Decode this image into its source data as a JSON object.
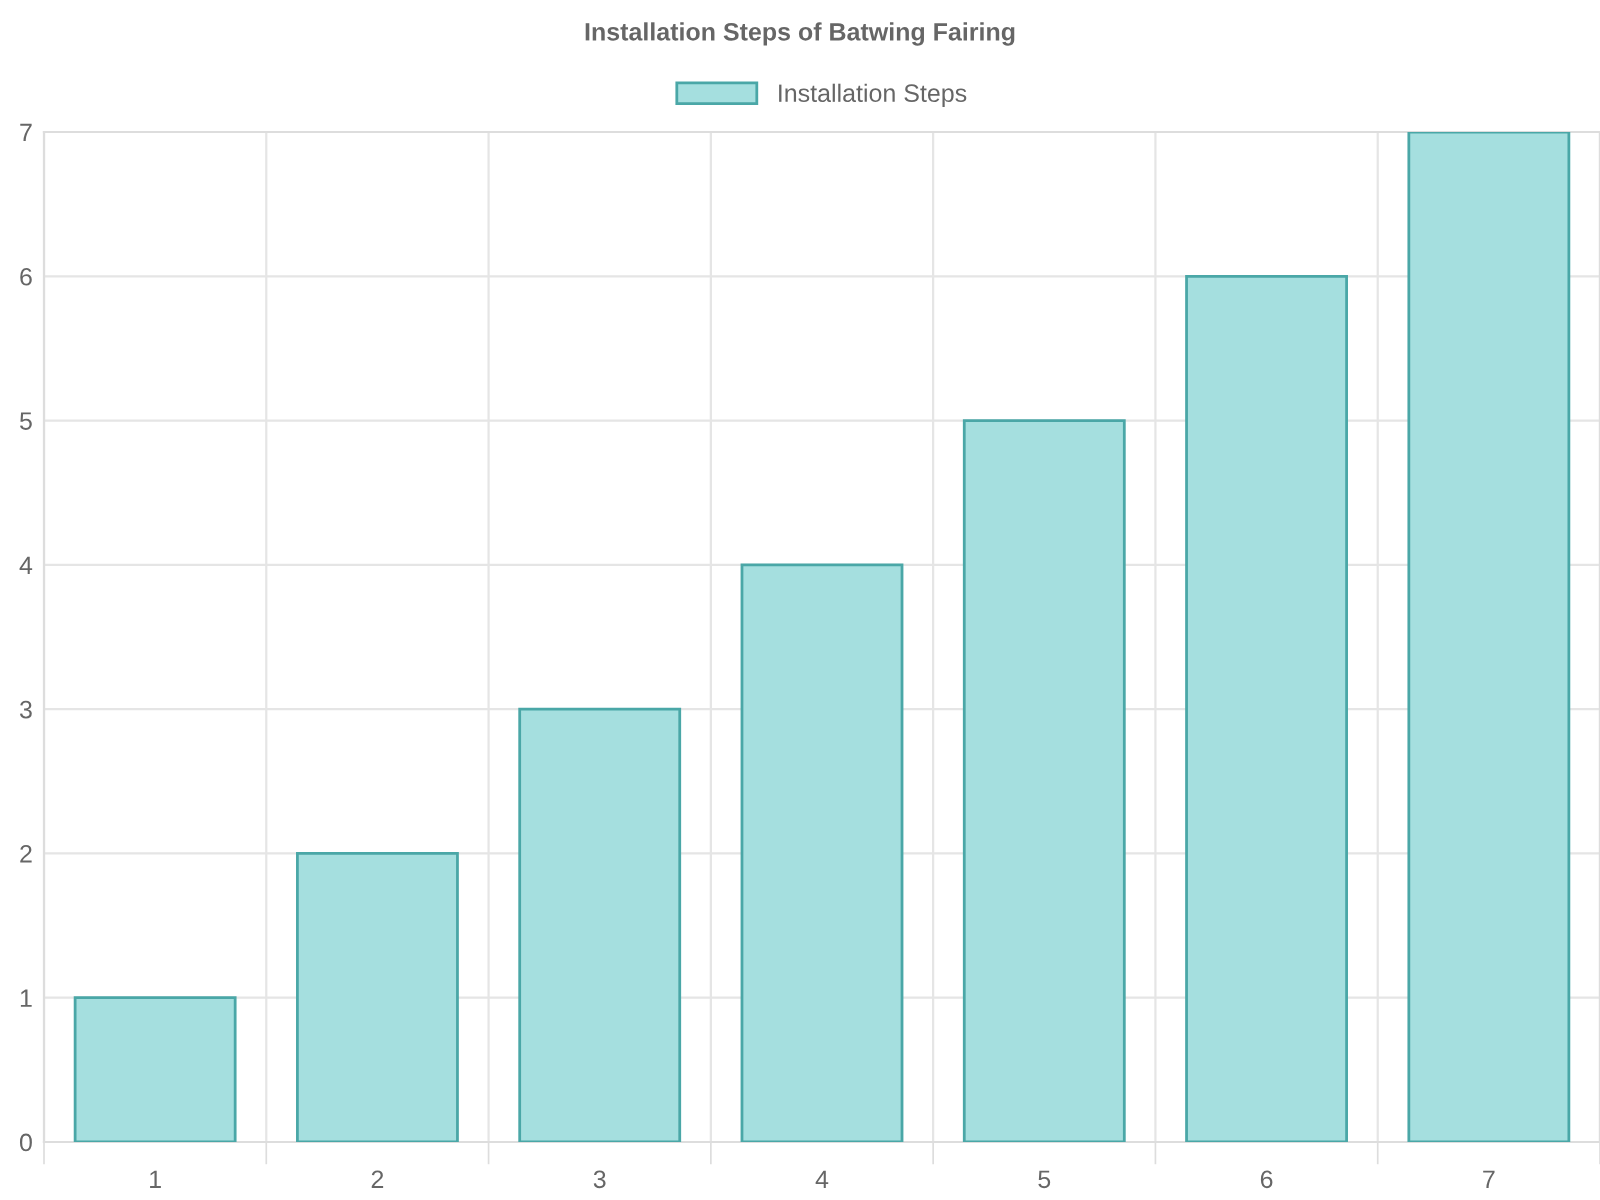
{
  "chart_data": {
    "type": "bar",
    "title": "Installation Steps of Batwing Fairing",
    "categories": [
      "1",
      "2",
      "3",
      "4",
      "5",
      "6",
      "7"
    ],
    "series": [
      {
        "name": "Installation Steps",
        "color": "#a5dfdf",
        "values": [
          1,
          2,
          3,
          4,
          5,
          6,
          7
        ]
      }
    ],
    "ylim": [
      0,
      7
    ],
    "yticks": [
      0,
      1,
      2,
      3,
      4,
      5,
      6,
      7
    ],
    "grid": true,
    "legend": "top"
  }
}
